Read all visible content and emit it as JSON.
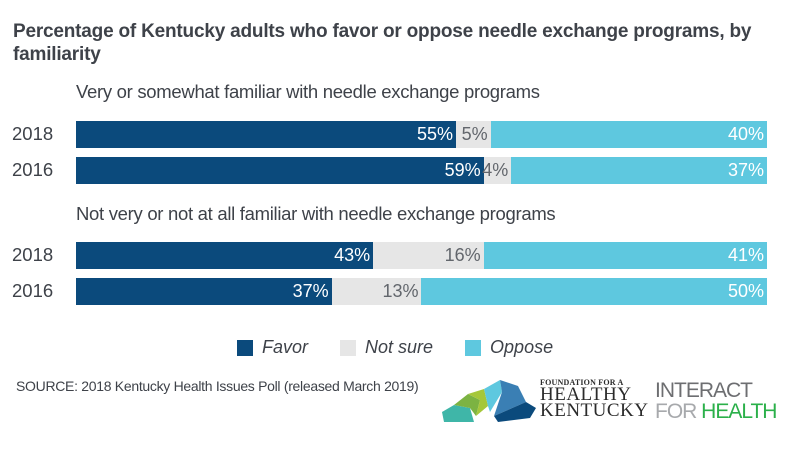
{
  "colors": {
    "favor": "#0b4a7c",
    "not_sure": "#e6e6e6",
    "oppose": "#5ec8df"
  },
  "chart_data": {
    "type": "bar",
    "orientation": "horizontal",
    "stacked": true,
    "title": "Percentage of Kentucky adults who favor or oppose needle exchange programs, by familiarity",
    "xlabel": "",
    "ylabel": "",
    "xlim": [
      0,
      100
    ],
    "grid": false,
    "legend_position": "bottom-center",
    "legend": [
      "Favor",
      "Not sure",
      "Oppose"
    ],
    "groups": [
      {
        "label": "Very or somewhat familiar with needle exchange programs",
        "categories": [
          "2018",
          "2016"
        ],
        "series": [
          {
            "name": "Favor",
            "values": [
              55,
              59
            ]
          },
          {
            "name": "Not sure",
            "values": [
              5,
              4
            ]
          },
          {
            "name": "Oppose",
            "values": [
              40,
              37
            ]
          }
        ]
      },
      {
        "label": "Not very or not at all familiar with needle exchange programs",
        "categories": [
          "2018",
          "2016"
        ],
        "series": [
          {
            "name": "Favor",
            "values": [
              43,
              37
            ]
          },
          {
            "name": "Not sure",
            "values": [
              16,
              13
            ]
          },
          {
            "name": "Oppose",
            "values": [
              41,
              50
            ]
          }
        ]
      }
    ]
  },
  "source": "SOURCE: 2018 Kentucky Health Issues Poll (released March 2019)",
  "logos": {
    "fhk": {
      "line1": "FOUNDATION FOR A",
      "line2": "HEALTHY",
      "line3": "KENTUCKY"
    },
    "ifh": {
      "line1": "INTERACT",
      "line2a": "FOR ",
      "line2b": "HEALTH"
    }
  }
}
